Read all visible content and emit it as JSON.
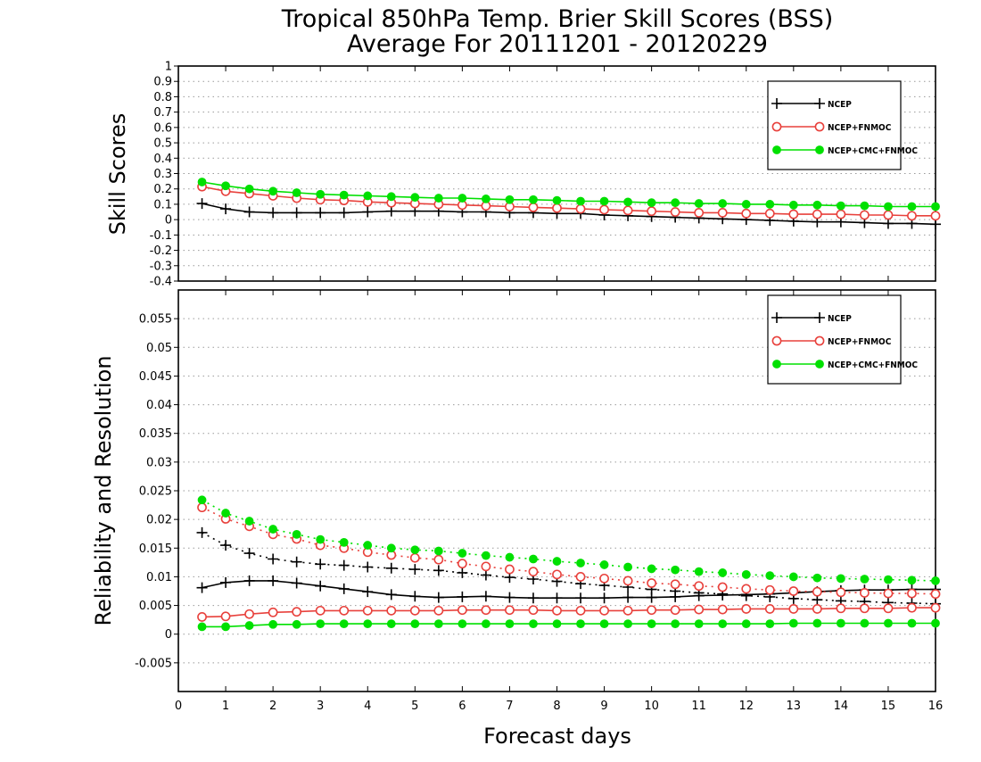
{
  "figure": {
    "title_line1": "Tropical 850hPa Temp. Brier Skill Scores (BSS)",
    "title_line2": "Average For 20111201 - 20120229",
    "xlabel": "Forecast days"
  },
  "colors": {
    "ncep": "#000000",
    "ncep_fnmoc": "#e8413c",
    "ncep_cmc_fnmoc": "#00e000",
    "grid": "#9a9a9a"
  },
  "chart_data": [
    {
      "type": "line",
      "panel": "top",
      "ylabel": "Skill Scores",
      "xlim": [
        0,
        16
      ],
      "ylim": [
        -0.4,
        1
      ],
      "x_ticks": [
        0,
        1,
        2,
        3,
        4,
        5,
        6,
        7,
        8,
        9,
        10,
        11,
        12,
        13,
        14,
        15,
        16
      ],
      "y_ticks": [
        -0.4,
        -0.3,
        -0.2,
        -0.1,
        0,
        0.1,
        0.2,
        0.3,
        0.4,
        0.5,
        0.6,
        0.7,
        0.8,
        0.9,
        1
      ],
      "y_tick_labels": [
        "-0.4",
        "-0.3",
        "-0.2",
        "-0.1",
        "0",
        "0.1",
        "0.2",
        "0.3",
        "0.4",
        "0.5",
        "0.6",
        "0.7",
        "0.8",
        "0.9",
        "1"
      ],
      "grid": "dotted horizontal",
      "legend_position": "top-right",
      "x": [
        0.5,
        1,
        1.5,
        2,
        2.5,
        3,
        3.5,
        4,
        4.5,
        5,
        5.5,
        6,
        6.5,
        7,
        7.5,
        8,
        8.5,
        9,
        9.5,
        10,
        10.5,
        11,
        11.5,
        12,
        12.5,
        13,
        13.5,
        14,
        14.5,
        15,
        15.5,
        16
      ],
      "series": [
        {
          "name": "NCEP",
          "marker": "plus",
          "color": "#000000",
          "values": [
            0.105,
            0.07,
            0.05,
            0.045,
            0.045,
            0.045,
            0.045,
            0.05,
            0.055,
            0.055,
            0.055,
            0.05,
            0.05,
            0.045,
            0.045,
            0.04,
            0.04,
            0.03,
            0.025,
            0.02,
            0.015,
            0.01,
            0.005,
            0.0,
            -0.005,
            -0.01,
            -0.015,
            -0.015,
            -0.02,
            -0.025,
            -0.025,
            -0.03
          ]
        },
        {
          "name": "NCEP+FNMOC",
          "marker": "open-circle",
          "color": "#e8413c",
          "values": [
            0.215,
            0.185,
            0.17,
            0.155,
            0.14,
            0.13,
            0.125,
            0.115,
            0.11,
            0.105,
            0.1,
            0.095,
            0.09,
            0.085,
            0.08,
            0.075,
            0.07,
            0.065,
            0.06,
            0.055,
            0.05,
            0.045,
            0.045,
            0.04,
            0.04,
            0.035,
            0.035,
            0.035,
            0.03,
            0.03,
            0.025,
            0.025
          ]
        },
        {
          "name": "NCEP+CMC+FNMOC",
          "marker": "filled-circle",
          "color": "#00e000",
          "values": [
            0.245,
            0.22,
            0.2,
            0.185,
            0.175,
            0.165,
            0.16,
            0.155,
            0.15,
            0.145,
            0.14,
            0.14,
            0.135,
            0.13,
            0.13,
            0.125,
            0.12,
            0.12,
            0.115,
            0.11,
            0.11,
            0.105,
            0.105,
            0.1,
            0.1,
            0.095,
            0.095,
            0.09,
            0.09,
            0.085,
            0.085,
            0.085
          ]
        }
      ]
    },
    {
      "type": "line",
      "panel": "bottom",
      "ylabel": "Reliability and Resolution",
      "xlim": [
        0,
        16
      ],
      "ylim": [
        -0.01,
        0.06
      ],
      "x_ticks": [
        0,
        1,
        2,
        3,
        4,
        5,
        6,
        7,
        8,
        9,
        10,
        11,
        12,
        13,
        14,
        15,
        16
      ],
      "y_ticks": [
        -0.005,
        0,
        0.005,
        0.01,
        0.015,
        0.02,
        0.025,
        0.03,
        0.035,
        0.04,
        0.045,
        0.05,
        0.055
      ],
      "y_tick_labels": [
        "-0.005",
        "0",
        "0.005",
        "0.01",
        "0.015",
        "0.02",
        "0.025",
        "0.03",
        "0.035",
        "0.04",
        "0.045",
        "0.05",
        "0.055"
      ],
      "grid": "dotted horizontal",
      "legend_position": "top-right",
      "x": [
        0.5,
        1,
        1.5,
        2,
        2.5,
        3,
        3.5,
        4,
        4.5,
        5,
        5.5,
        6,
        6.5,
        7,
        7.5,
        8,
        8.5,
        9,
        9.5,
        10,
        10.5,
        11,
        11.5,
        12,
        12.5,
        13,
        13.5,
        14,
        14.5,
        15,
        15.5,
        16
      ],
      "line_styles": {
        "resolution": "solid",
        "reliability": "dotted"
      },
      "series": [
        {
          "name": "NCEP",
          "component": "resolution",
          "marker": "plus",
          "color": "#000000",
          "dash": "solid",
          "values": [
            0.0081,
            0.009,
            0.0093,
            0.0093,
            0.0089,
            0.0084,
            0.0079,
            0.0074,
            0.0069,
            0.0066,
            0.0064,
            0.0065,
            0.0066,
            0.0064,
            0.0063,
            0.0063,
            0.0063,
            0.0063,
            0.0064,
            0.0064,
            0.0065,
            0.0067,
            0.0068,
            0.0069,
            0.007,
            0.0072,
            0.0074,
            0.0076,
            0.0077,
            0.0077,
            0.0078,
            0.0078
          ]
        },
        {
          "name": "NCEP",
          "component": "reliability",
          "marker": "plus",
          "color": "#000000",
          "dash": "dotted",
          "values": [
            0.0177,
            0.0155,
            0.0141,
            0.0131,
            0.0126,
            0.0122,
            0.012,
            0.0117,
            0.0115,
            0.0113,
            0.0111,
            0.0107,
            0.0103,
            0.0099,
            0.0096,
            0.0092,
            0.0088,
            0.0085,
            0.0082,
            0.0078,
            0.0075,
            0.0072,
            0.007,
            0.0067,
            0.0065,
            0.0062,
            0.006,
            0.0058,
            0.0057,
            0.0055,
            0.0054,
            0.0053
          ]
        },
        {
          "name": "NCEP+FNMOC",
          "component": "resolution",
          "marker": "open-circle",
          "color": "#e8413c",
          "dash": "solid",
          "values": [
            0.003,
            0.0031,
            0.0035,
            0.0038,
            0.0039,
            0.0041,
            0.0041,
            0.0041,
            0.0041,
            0.0041,
            0.0041,
            0.0042,
            0.0042,
            0.0042,
            0.0042,
            0.0041,
            0.0041,
            0.0041,
            0.0041,
            0.0042,
            0.0042,
            0.0043,
            0.0043,
            0.0044,
            0.0044,
            0.0044,
            0.0044,
            0.0045,
            0.0045,
            0.0045,
            0.0046,
            0.0046
          ]
        },
        {
          "name": "NCEP+FNMOC",
          "component": "reliability",
          "marker": "open-circle",
          "color": "#e8413c",
          "dash": "dotted",
          "values": [
            0.0221,
            0.0201,
            0.0188,
            0.0174,
            0.0166,
            0.0155,
            0.015,
            0.0143,
            0.0138,
            0.0133,
            0.013,
            0.0123,
            0.0118,
            0.0113,
            0.0109,
            0.0104,
            0.01,
            0.0097,
            0.0093,
            0.0089,
            0.0087,
            0.0084,
            0.0082,
            0.0079,
            0.0077,
            0.0075,
            0.0074,
            0.0073,
            0.0072,
            0.0071,
            0.0071,
            0.007
          ]
        },
        {
          "name": "NCEP+CMC+FNMOC",
          "component": "resolution",
          "marker": "filled-circle",
          "color": "#00e000",
          "dash": "solid",
          "values": [
            0.0013,
            0.0013,
            0.0015,
            0.0017,
            0.0017,
            0.0018,
            0.0018,
            0.0018,
            0.0018,
            0.0018,
            0.0018,
            0.0018,
            0.0018,
            0.0018,
            0.0018,
            0.0018,
            0.0018,
            0.0018,
            0.0018,
            0.0018,
            0.0018,
            0.0018,
            0.0018,
            0.0018,
            0.0018,
            0.0019,
            0.0019,
            0.0019,
            0.0019,
            0.0019,
            0.0019,
            0.0019
          ]
        },
        {
          "name": "NCEP+CMC+FNMOC",
          "component": "reliability",
          "marker": "filled-circle",
          "color": "#00e000",
          "dash": "dotted",
          "values": [
            0.0234,
            0.0211,
            0.0197,
            0.0183,
            0.0174,
            0.0165,
            0.016,
            0.0155,
            0.015,
            0.0147,
            0.0145,
            0.0141,
            0.0137,
            0.0134,
            0.0131,
            0.0127,
            0.0124,
            0.0121,
            0.0117,
            0.0114,
            0.0112,
            0.0109,
            0.0107,
            0.0104,
            0.0102,
            0.01,
            0.0098,
            0.0097,
            0.0096,
            0.0095,
            0.0094,
            0.0093
          ]
        }
      ]
    }
  ]
}
